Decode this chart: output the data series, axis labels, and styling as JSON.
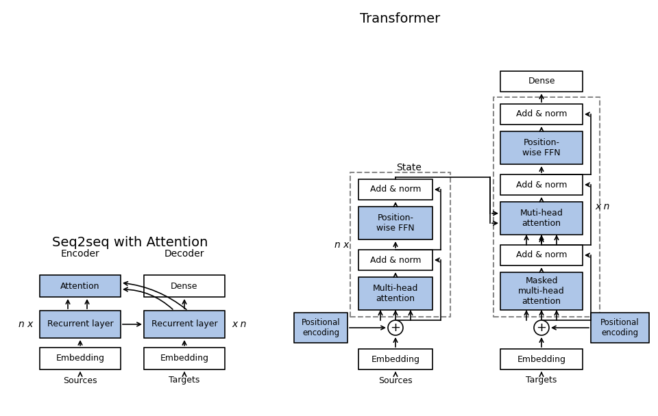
{
  "bg_color": "#ffffff",
  "blue_fill": "#aec6e8",
  "white_fill": "#ffffff",
  "box_edge": "#000000",
  "dashed_edge": "#888888",
  "title_seq2seq": "Seq2seq with Attention",
  "title_transformer": "Transformer",
  "label_encoder": "Encoder",
  "label_decoder": "Decoder",
  "label_state": "State",
  "label_nx_left": "n x",
  "label_xn_right": "x n",
  "label_nx_transformer": "n x",
  "label_xn_transformer": "x n",
  "label_sources1": "Sources",
  "label_targets1": "Targets",
  "label_sources2": "Sources",
  "label_targets2": "Targets"
}
